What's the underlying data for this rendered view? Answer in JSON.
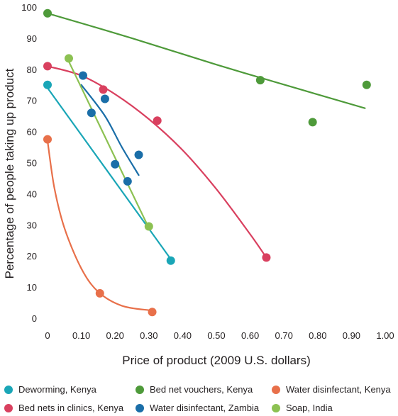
{
  "chart_data": {
    "type": "scatter",
    "title": "",
    "xlabel": "Price of product (2009 U.S. dollars)",
    "ylabel": "Percentage of people taking up product",
    "xlim": [
      0,
      1.0
    ],
    "ylim": [
      0,
      100
    ],
    "x_ticks": [
      0,
      0.1,
      0.2,
      0.3,
      0.4,
      0.5,
      0.6,
      0.7,
      0.8,
      0.9,
      1.0
    ],
    "x_tick_labels": [
      "0",
      "0.10",
      "0.20",
      "0.30",
      "0.40",
      "0.50",
      "0.60",
      "0.70",
      "0.80",
      "0.90",
      "1.00"
    ],
    "y_ticks": [
      0,
      10,
      20,
      30,
      40,
      50,
      60,
      70,
      80,
      90,
      100
    ],
    "y_tick_labels": [
      "0",
      "10",
      "20",
      "30",
      "40",
      "50",
      "60",
      "70",
      "80",
      "90",
      "100"
    ],
    "grid": false,
    "legend_position": "bottom",
    "series": [
      {
        "name": "Deworming, Kenya",
        "color": "#1aa6b7",
        "points": [
          [
            0,
            75
          ],
          [
            0.365,
            18.5
          ]
        ],
        "trend": [
          [
            0,
            74
          ],
          [
            0.365,
            19
          ]
        ]
      },
      {
        "name": "Bed net vouchers, Kenya",
        "color": "#4e9a3a",
        "points": [
          [
            0,
            98
          ],
          [
            0.63,
            76.5
          ],
          [
            0.785,
            63
          ],
          [
            0.945,
            75
          ]
        ],
        "trend": [
          [
            0,
            98
          ],
          [
            0.25,
            90
          ],
          [
            0.5,
            81.5
          ],
          [
            0.75,
            73.5
          ],
          [
            0.94,
            67.5
          ]
        ]
      },
      {
        "name": "Water disinfectant, Kenya",
        "color": "#e8704a",
        "points": [
          [
            0,
            57.5
          ],
          [
            0.155,
            8
          ],
          [
            0.31,
            2
          ]
        ],
        "trend": [
          [
            0,
            57
          ],
          [
            0.02,
            42
          ],
          [
            0.05,
            29
          ],
          [
            0.1,
            16
          ],
          [
            0.15,
            8.5
          ],
          [
            0.22,
            4
          ],
          [
            0.305,
            2.5
          ]
        ]
      },
      {
        "name": "Bed nets in clinics, Kenya",
        "color": "#d9405f",
        "points": [
          [
            0,
            81
          ],
          [
            0.165,
            73.5
          ],
          [
            0.325,
            63.5
          ],
          [
            0.648,
            19.5
          ]
        ],
        "trend": [
          [
            0,
            81
          ],
          [
            0.1,
            78
          ],
          [
            0.2,
            72
          ],
          [
            0.3,
            64
          ],
          [
            0.4,
            54
          ],
          [
            0.5,
            41.5
          ],
          [
            0.6,
            27
          ],
          [
            0.648,
            19.5
          ]
        ]
      },
      {
        "name": "Water disinfectant, Zambia",
        "color": "#1a6ea8",
        "points": [
          [
            0.105,
            78
          ],
          [
            0.17,
            70.5
          ],
          [
            0.13,
            66
          ],
          [
            0.2,
            49.5
          ],
          [
            0.237,
            44
          ],
          [
            0.27,
            52.5
          ]
        ],
        "trend": [
          [
            0.1,
            75
          ],
          [
            0.17,
            65
          ],
          [
            0.22,
            55
          ],
          [
            0.27,
            46
          ]
        ]
      },
      {
        "name": "Soap, India",
        "color": "#8cc152",
        "points": [
          [
            0.063,
            83.5
          ],
          [
            0.3,
            29.5
          ]
        ],
        "trend": [
          [
            0.063,
            82.5
          ],
          [
            0.3,
            29
          ]
        ]
      }
    ]
  }
}
